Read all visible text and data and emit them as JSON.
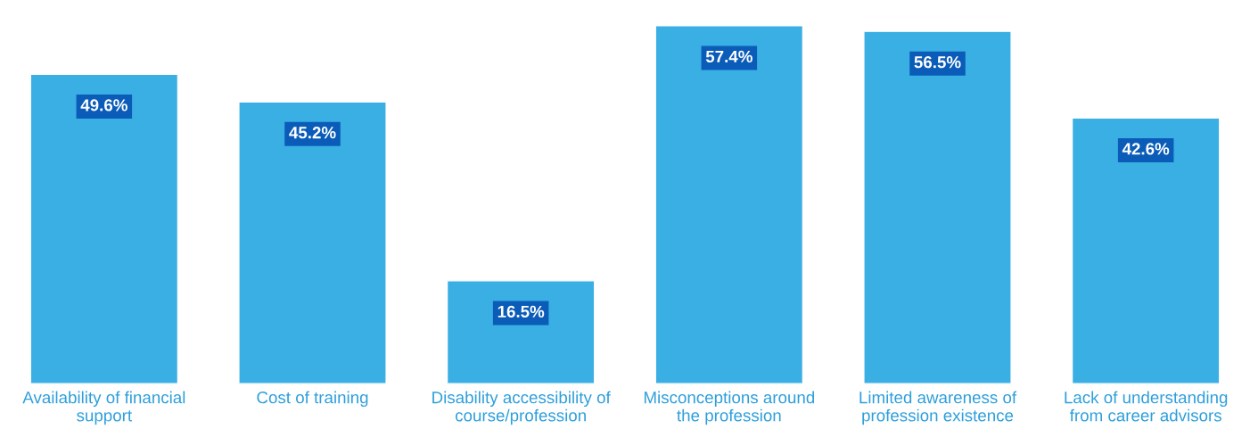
{
  "chart_data": {
    "type": "bar",
    "categories": [
      "Availability of financial\nsupport",
      "Cost of training",
      "Disability accessibility of\ncourse/profession",
      "Misconceptions around\nthe profession",
      "Limited awareness of\nprofession existence",
      "Lack of understanding\nfrom career advisors"
    ],
    "values": [
      49.6,
      45.2,
      16.5,
      57.4,
      56.5,
      42.6
    ],
    "color": "#3aafe3",
    "value_labels": [
      "49.6%",
      "45.2%",
      "16.5%",
      "57.4%",
      "56.5%",
      "42.6%"
    ],
    "grid": false,
    "legend": false
  }
}
